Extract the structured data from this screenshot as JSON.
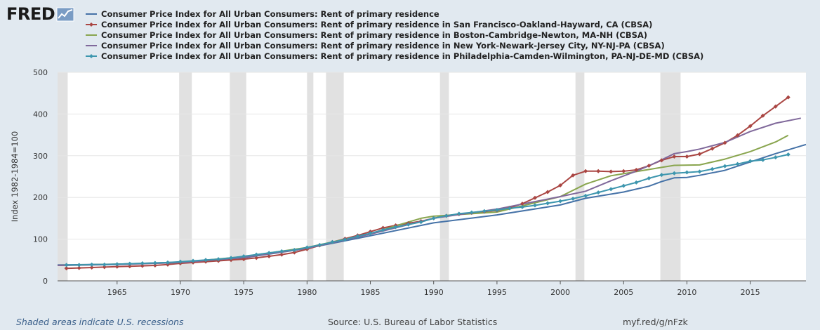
{
  "logo": {
    "text": "FRED"
  },
  "footer": {
    "recession_note": "Shaded areas indicate U.S. recessions",
    "source": "Source: U.S. Bureau of Labor Statistics",
    "link": "myf.red/g/nFzk"
  },
  "chart_data": {
    "type": "line",
    "ylabel": "Index 1982-1984=100",
    "xlabel": "",
    "xlim": [
      1960.3,
      2019.4
    ],
    "ylim": [
      0,
      500
    ],
    "yticks": [
      0,
      100,
      200,
      300,
      400,
      500
    ],
    "xticks": [
      1965,
      1970,
      1975,
      1980,
      1985,
      1990,
      1995,
      2000,
      2005,
      2010,
      2015
    ],
    "grid": true,
    "legend_position": "top",
    "background": "#ffffff",
    "recessions": [
      [
        1960.3,
        1961.1
      ],
      [
        1969.9,
        1970.9
      ],
      [
        1973.9,
        1975.2
      ],
      [
        1980.0,
        1980.5
      ],
      [
        1981.5,
        1982.9
      ],
      [
        1990.5,
        1991.2
      ],
      [
        2001.2,
        2001.9
      ],
      [
        2007.9,
        2009.5
      ]
    ],
    "recession_color": "#e1e1e1",
    "series": [
      {
        "name": "Consumer Price Index for All Urban Consumers: Rent of primary residence",
        "color": "#4572a7",
        "marker": "none",
        "x": [
          1960.3,
          1965,
          1970,
          1975,
          1980,
          1985,
          1990,
          1995,
          2000,
          2002,
          2005,
          2007,
          2008,
          2009,
          2010,
          2011,
          2013,
          2015,
          2017,
          2019.4
        ],
        "values": [
          38,
          40,
          45,
          55,
          78,
          108,
          139,
          158,
          182,
          198,
          213,
          227,
          238,
          247,
          248,
          253,
          265,
          285,
          305,
          327
        ]
      },
      {
        "name": "Consumer Price Index for All Urban Consumers: Rent of primary residence in San Francisco-Oakland-Hayward, CA (CBSA)",
        "color": "#aa4643",
        "marker": "diamond",
        "x": [
          1961,
          1962,
          1963,
          1964,
          1965,
          1966,
          1967,
          1968,
          1969,
          1970,
          1971,
          1972,
          1973,
          1974,
          1975,
          1976,
          1977,
          1978,
          1979,
          1980,
          1981,
          1982,
          1983,
          1984,
          1985,
          1986,
          1987,
          1988,
          1989,
          1990,
          1991,
          1992,
          1993,
          1994,
          1995,
          1996,
          1997,
          1998,
          1999,
          2000,
          2001,
          2002,
          2003,
          2004,
          2005,
          2006,
          2007,
          2008,
          2009,
          2010,
          2011,
          2012,
          2013,
          2014,
          2015,
          2016,
          2017,
          2018
        ],
        "values": [
          30,
          31,
          32,
          33,
          34,
          35,
          36,
          37,
          39,
          42,
          44,
          46,
          48,
          50,
          52,
          55,
          59,
          63,
          68,
          76,
          85,
          93,
          101,
          109,
          118,
          127,
          133,
          138,
          143,
          150,
          156,
          160,
          163,
          166,
          169,
          175,
          185,
          199,
          213,
          229,
          253,
          263,
          263,
          262,
          263,
          266,
          276,
          289,
          298,
          298,
          304,
          317,
          331,
          349,
          371,
          396,
          418,
          440
        ]
      },
      {
        "name": "Consumer Price Index for All Urban Consumers: Rent of primary residence in Boston-Cambridge-Newton, MA-NH (CBSA)",
        "color": "#89a54e",
        "marker": "none",
        "x": [
          1960.3,
          1965,
          1970,
          1975,
          1980,
          1985,
          1987,
          1989,
          1990,
          1995,
          2000,
          2002,
          2004,
          2006,
          2008,
          2009,
          2011,
          2013,
          2015,
          2017,
          2018
        ],
        "values": [
          37,
          40,
          44,
          58,
          80,
          113,
          132,
          150,
          155,
          165,
          202,
          232,
          252,
          262,
          272,
          277,
          278,
          292,
          310,
          333,
          349
        ]
      },
      {
        "name": "Consumer Price Index for All Urban Consumers: Rent of primary residence in New York-Newark-Jersey City, NY-NJ-PA (CBSA)",
        "color": "#80699b",
        "marker": "none",
        "x": [
          1960.3,
          1965,
          1970,
          1975,
          1980,
          1985,
          1990,
          1995,
          2000,
          2002,
          2004,
          2006,
          2007,
          2008,
          2009,
          2010,
          2011,
          2013,
          2015,
          2017,
          2019
        ],
        "values": [
          37,
          39,
          44,
          56,
          78,
          112,
          150,
          172,
          202,
          215,
          240,
          263,
          276,
          290,
          305,
          310,
          316,
          332,
          358,
          378,
          390
        ]
      },
      {
        "name": "Consumer Price Index for All Urban Consumers: Rent of primary residence in Philadelphia-Camden-Wilmington, PA-NJ-DE-MD (CBSA)",
        "color": "#3d96ae",
        "marker": "diamond",
        "x": [
          1961,
          1962,
          1963,
          1964,
          1965,
          1966,
          1967,
          1968,
          1969,
          1970,
          1971,
          1972,
          1973,
          1974,
          1975,
          1976,
          1977,
          1978,
          1979,
          1980,
          1981,
          1982,
          1983,
          1984,
          1985,
          1986,
          1987,
          1988,
          1989,
          1990,
          1991,
          1992,
          1993,
          1994,
          1995,
          1996,
          1997,
          1998,
          1999,
          2000,
          2001,
          2002,
          2003,
          2004,
          2005,
          2006,
          2007,
          2008,
          2009,
          2010,
          2011,
          2012,
          2013,
          2014,
          2015,
          2016,
          2017,
          2018
        ],
        "values": [
          38,
          38,
          39,
          39,
          40,
          41,
          42,
          43,
          44,
          46,
          48,
          50,
          52,
          55,
          59,
          63,
          67,
          71,
          74,
          80,
          86,
          93,
          99,
          107,
          114,
          122,
          129,
          135,
          141,
          150,
          156,
          161,
          164,
          167,
          170,
          174,
          177,
          181,
          186,
          191,
          197,
          204,
          212,
          220,
          228,
          236,
          246,
          254,
          258,
          260,
          262,
          268,
          275,
          280,
          287,
          290,
          296,
          303
        ]
      }
    ]
  }
}
